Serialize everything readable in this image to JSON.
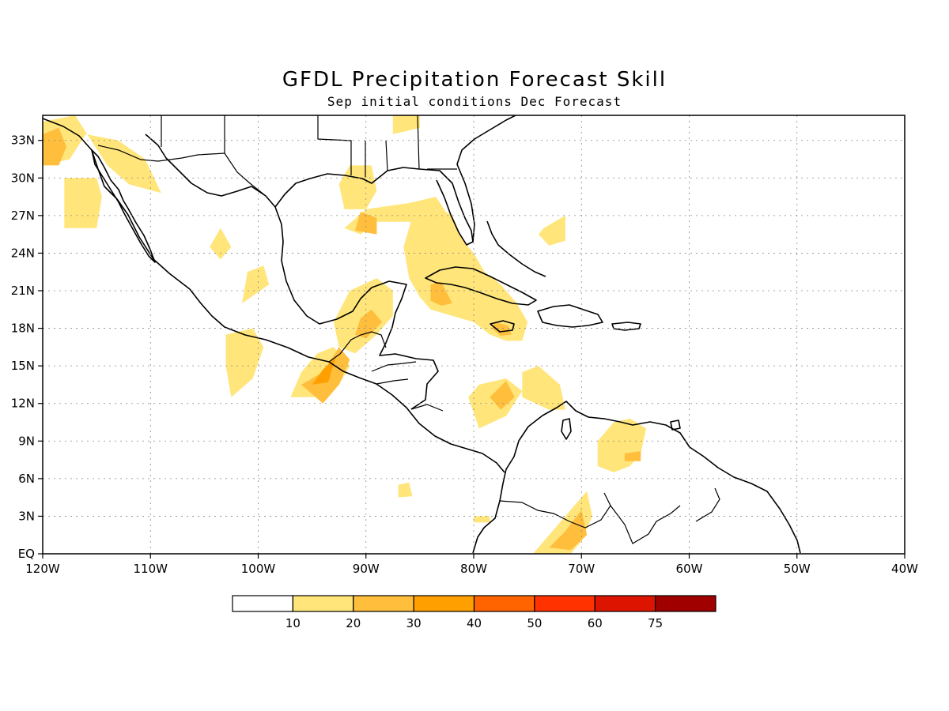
{
  "title": "GFDL Precipitation Forecast Skill",
  "subtitle": "Sep initial conditions  Dec Forecast",
  "map": {
    "lon_range": [
      -120,
      -40
    ],
    "lat_range": [
      0,
      35
    ],
    "lon_ticks": [
      {
        "value": -120,
        "label": "120W"
      },
      {
        "value": -110,
        "label": "110W"
      },
      {
        "value": -100,
        "label": "100W"
      },
      {
        "value": -90,
        "label": "90W"
      },
      {
        "value": -80,
        "label": "80W"
      },
      {
        "value": -70,
        "label": "70W"
      },
      {
        "value": -60,
        "label": "60W"
      },
      {
        "value": -50,
        "label": "50W"
      },
      {
        "value": -40,
        "label": "40W"
      }
    ],
    "lat_ticks": [
      {
        "value": 33,
        "label": "33N"
      },
      {
        "value": 30,
        "label": "30N"
      },
      {
        "value": 27,
        "label": "27N"
      },
      {
        "value": 24,
        "label": "24N"
      },
      {
        "value": 21,
        "label": "21N"
      },
      {
        "value": 18,
        "label": "18N"
      },
      {
        "value": 15,
        "label": "15N"
      },
      {
        "value": 12,
        "label": "12N"
      },
      {
        "value": 9,
        "label": "9N"
      },
      {
        "value": 6,
        "label": "6N"
      },
      {
        "value": 3,
        "label": "3N"
      },
      {
        "value": 0,
        "label": "EQ"
      }
    ],
    "grid": true
  },
  "colorbar": {
    "colors": [
      "#ffffff",
      "#ffe57a",
      "#ffbe3c",
      "#ffa000",
      "#ff6400",
      "#ff3200",
      "#dc1400",
      "#a00000"
    ],
    "labels": [
      "10",
      "20",
      "30",
      "40",
      "50",
      "60",
      "75"
    ]
  },
  "shading": {
    "level1_color": "#ffe57a",
    "level2_color": "#ffbe3c",
    "level3_color": "#ffa000",
    "regions": [
      {
        "level": 1,
        "poly": [
          [
            -120,
            34.5
          ],
          [
            -117,
            35
          ],
          [
            -115.5,
            33
          ],
          [
            -114,
            31
          ],
          [
            -112,
            29.5
          ],
          [
            -109,
            28.8
          ],
          [
            -110.5,
            31.5
          ],
          [
            -113,
            33
          ],
          [
            -116,
            33.5
          ],
          [
            -117.5,
            31.5
          ],
          [
            -120,
            31
          ]
        ]
      },
      {
        "level": 2,
        "poly": [
          [
            -120,
            33.5
          ],
          [
            -118.5,
            34
          ],
          [
            -117.8,
            32.5
          ],
          [
            -118.5,
            31
          ],
          [
            -120,
            31
          ]
        ]
      },
      {
        "level": 1,
        "poly": [
          [
            -118,
            30
          ],
          [
            -115,
            30
          ],
          [
            -114.5,
            28.5
          ],
          [
            -115,
            26
          ],
          [
            -118,
            26
          ],
          [
            -118,
            28
          ]
        ]
      },
      {
        "level": 1,
        "poly": [
          [
            -87.5,
            35
          ],
          [
            -85,
            35
          ],
          [
            -85,
            34
          ],
          [
            -87.5,
            33.5
          ]
        ]
      },
      {
        "level": 1,
        "poly": [
          [
            -91.5,
            31
          ],
          [
            -89.5,
            31
          ],
          [
            -89,
            29
          ],
          [
            -90,
            27.5
          ],
          [
            -92,
            27.5
          ],
          [
            -92.5,
            29.5
          ]
        ]
      },
      {
        "level": 1,
        "poly": [
          [
            -92,
            26
          ],
          [
            -90,
            27.5
          ],
          [
            -86,
            28
          ],
          [
            -83.5,
            28.5
          ],
          [
            -82,
            26.5
          ],
          [
            -84,
            26
          ],
          [
            -86,
            26.5
          ],
          [
            -89,
            26.5
          ],
          [
            -90.5,
            25.5
          ]
        ]
      },
      {
        "level": 2,
        "poly": [
          [
            -91,
            25.8
          ],
          [
            -90.5,
            27.3
          ],
          [
            -89,
            26.8
          ],
          [
            -89,
            25.5
          ]
        ]
      },
      {
        "level": 1,
        "poly": [
          [
            -85.5,
            27.5
          ],
          [
            -84,
            28
          ],
          [
            -82,
            27
          ],
          [
            -81,
            25
          ],
          [
            -80,
            24
          ],
          [
            -79,
            22.5
          ],
          [
            -77.5,
            21.5
          ],
          [
            -76,
            20
          ],
          [
            -75,
            18.5
          ],
          [
            -75.5,
            17
          ],
          [
            -77,
            17
          ],
          [
            -78.5,
            17.5
          ],
          [
            -80,
            18.5
          ],
          [
            -82,
            19
          ],
          [
            -84,
            19.5
          ],
          [
            -85,
            20.5
          ],
          [
            -86,
            22
          ],
          [
            -86.5,
            24.5
          ]
        ]
      },
      {
        "level": 2,
        "poly": [
          [
            -84,
            21.5
          ],
          [
            -83,
            21.7
          ],
          [
            -82,
            20
          ],
          [
            -83,
            19.8
          ],
          [
            -84,
            20.2
          ]
        ]
      },
      {
        "level": 2,
        "poly": [
          [
            -78,
            18.5
          ],
          [
            -76.8,
            18.2
          ],
          [
            -76.5,
            17.5
          ],
          [
            -77.5,
            17.4
          ],
          [
            -78.3,
            18
          ]
        ]
      },
      {
        "level": 1,
        "poly": [
          [
            -73.5,
            26
          ],
          [
            -71.5,
            27
          ],
          [
            -71.5,
            25
          ],
          [
            -73,
            24.6
          ],
          [
            -74,
            25.5
          ]
        ]
      },
      {
        "level": 1,
        "poly": [
          [
            -104.5,
            24.5
          ],
          [
            -103.5,
            26
          ],
          [
            -102.5,
            24.5
          ],
          [
            -103.5,
            23.5
          ]
        ]
      },
      {
        "level": 1,
        "poly": [
          [
            -101,
            22.5
          ],
          [
            -99.5,
            23
          ],
          [
            -99,
            21.5
          ],
          [
            -101.5,
            20
          ]
        ]
      },
      {
        "level": 1,
        "poly": [
          [
            -91.5,
            21
          ],
          [
            -89,
            22
          ],
          [
            -87.5,
            21
          ],
          [
            -87.5,
            19
          ],
          [
            -89,
            17.5
          ],
          [
            -91,
            16
          ],
          [
            -92.5,
            16.5
          ],
          [
            -93,
            18.5
          ]
        ]
      },
      {
        "level": 2,
        "poly": [
          [
            -90.5,
            18.8
          ],
          [
            -89.5,
            19.5
          ],
          [
            -88.5,
            18.5
          ],
          [
            -90,
            17.2
          ],
          [
            -91,
            17.5
          ]
        ]
      },
      {
        "level": 1,
        "poly": [
          [
            -103,
            17.5
          ],
          [
            -100.5,
            18
          ],
          [
            -99.5,
            16.5
          ],
          [
            -100.5,
            14
          ],
          [
            -102.5,
            12.5
          ],
          [
            -103,
            15
          ]
        ]
      },
      {
        "level": 1,
        "poly": [
          [
            -97,
            12.5
          ],
          [
            -94,
            12.5
          ],
          [
            -92.5,
            13.5
          ],
          [
            -91.5,
            15
          ],
          [
            -93,
            16.5
          ],
          [
            -94.5,
            16
          ],
          [
            -96,
            14.5
          ]
        ]
      },
      {
        "level": 2,
        "poly": [
          [
            -96,
            13.5
          ],
          [
            -94,
            14.5
          ],
          [
            -92.5,
            16.5
          ],
          [
            -91.5,
            15.5
          ],
          [
            -92.5,
            13.5
          ],
          [
            -94,
            12
          ]
        ]
      },
      {
        "level": 3,
        "poly": [
          [
            -95,
            13.5
          ],
          [
            -94,
            14.7
          ],
          [
            -92.8,
            15.7
          ],
          [
            -93.5,
            13.7
          ]
        ]
      },
      {
        "level": 1,
        "poly": [
          [
            -80.5,
            12.5
          ],
          [
            -79.5,
            13.5
          ],
          [
            -77,
            14
          ],
          [
            -75.5,
            13
          ],
          [
            -77,
            11
          ],
          [
            -79.5,
            10
          ]
        ]
      },
      {
        "level": 2,
        "poly": [
          [
            -78.5,
            12.5
          ],
          [
            -77,
            13.8
          ],
          [
            -76.2,
            12.5
          ],
          [
            -77.5,
            11.5
          ]
        ]
      },
      {
        "level": 1,
        "poly": [
          [
            -75.5,
            14.5
          ],
          [
            -74,
            15
          ],
          [
            -72,
            13.5
          ],
          [
            -71.5,
            11.5
          ],
          [
            -73,
            11.5
          ],
          [
            -75.5,
            12.5
          ]
        ]
      },
      {
        "level": 1,
        "poly": [
          [
            -67,
            10.5
          ],
          [
            -65.5,
            10.8
          ],
          [
            -64,
            10
          ],
          [
            -64.5,
            8
          ],
          [
            -65.5,
            7
          ],
          [
            -67,
            6.5
          ],
          [
            -68.5,
            7
          ],
          [
            -68.5,
            9
          ]
        ]
      },
      {
        "level": 2,
        "poly": [
          [
            -66,
            8
          ],
          [
            -64.5,
            8.2
          ],
          [
            -64.5,
            7.4
          ],
          [
            -66,
            7.4
          ]
        ]
      },
      {
        "level": 1,
        "poly": [
          [
            -74.5,
            0
          ],
          [
            -72.5,
            2
          ],
          [
            -71,
            3.5
          ],
          [
            -69.5,
            5
          ],
          [
            -69,
            3
          ],
          [
            -70,
            1
          ],
          [
            -71,
            0
          ]
        ]
      },
      {
        "level": 2,
        "poly": [
          [
            -73,
            0.5
          ],
          [
            -71.5,
            1.8
          ],
          [
            -70,
            3.5
          ],
          [
            -69.5,
            1.5
          ],
          [
            -71,
            0.3
          ]
        ]
      },
      {
        "level": 1,
        "poly": [
          [
            -87,
            5.5
          ],
          [
            -86,
            5.7
          ],
          [
            -85.7,
            4.6
          ],
          [
            -87,
            4.5
          ]
        ]
      },
      {
        "level": 1,
        "poly": [
          [
            -80,
            3
          ],
          [
            -78.5,
            3
          ],
          [
            -78.5,
            2.5
          ],
          [
            -80,
            2.5
          ]
        ]
      }
    ]
  }
}
